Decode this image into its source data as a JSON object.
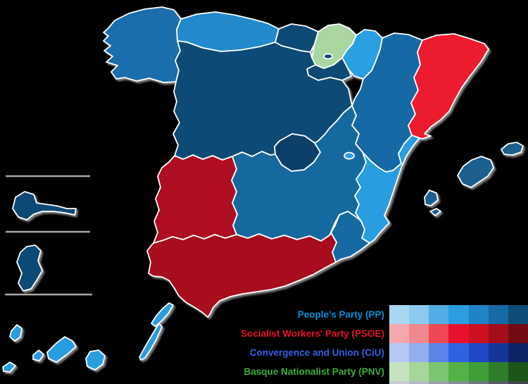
{
  "legend": {
    "entries": [
      {
        "party": "People's Party (PP)",
        "label_color": "#0092da",
        "shades": [
          "#a9d7f2",
          "#8cc9ee",
          "#54ace4",
          "#2b9de0",
          "#1f83c6",
          "#176aa6",
          "#0e4d78"
        ]
      },
      {
        "party": "Socialist Workers' Party (PSOE)",
        "label_color": "#e8112d",
        "shades": [
          "#f5a7ae",
          "#f1878f",
          "#ee4854",
          "#e8112d",
          "#cd1022",
          "#a30d1c",
          "#740a13"
        ]
      },
      {
        "party": "Convergence and Union (CiU)",
        "label_color": "#3263e2",
        "shades": [
          "#b5c8f3",
          "#93aeee",
          "#5d83e8",
          "#2f62e2",
          "#1f48c6",
          "#16359b",
          "#0e2266"
        ]
      },
      {
        "party": "Basque Nationalist Party (PNV)",
        "label_color": "#3fae3c",
        "shades": [
          "#c5e3bf",
          "#a5d69c",
          "#7cc671",
          "#52b246",
          "#3f9e38",
          "#2f7d2b",
          "#1d5418"
        ]
      }
    ],
    "partial_row_shades": [
      "#c6cbd0",
      "#b4bac0",
      "#9aa2a9",
      "#868e96",
      "#707880",
      "#595f66",
      "#42474d"
    ]
  },
  "map": {
    "stroke_color": "#ffffff",
    "shadow_color": "#9a9a9a",
    "inset_line_color": "#a8a8a8",
    "regions": [
      {
        "id": "galicia",
        "name": "Galicia",
        "winner": "PP",
        "fill": "#1a6dab"
      },
      {
        "id": "asturias",
        "name": "Asturias",
        "winner": "PP",
        "fill": "#2289cb"
      },
      {
        "id": "cantabria",
        "name": "Cantabria",
        "winner": "PP",
        "fill": "#0d4a74"
      },
      {
        "id": "basque-country",
        "name": "Basque Country",
        "winner": "PNV",
        "fill": "#a9d6a1"
      },
      {
        "id": "trevino-enclave",
        "name": "Trevino enclave (Castile and Leon)",
        "winner": "PP",
        "fill": "#0d4a74"
      },
      {
        "id": "navarre",
        "name": "Navarre",
        "winner": "PP",
        "fill": "#2b9fe1"
      },
      {
        "id": "la-rioja",
        "name": "La Rioja",
        "winner": "PP",
        "fill": "#0d4a74"
      },
      {
        "id": "aragon",
        "name": "Aragon",
        "winner": "PP",
        "fill": "#1769a5"
      },
      {
        "id": "catalonia",
        "name": "Catalonia",
        "winner": "PSOE",
        "fill": "#ec1b2e"
      },
      {
        "id": "castile-and-leon",
        "name": "Castile and Leon",
        "winner": "PP",
        "fill": "#0e4c76"
      },
      {
        "id": "madrid",
        "name": "Community of Madrid",
        "winner": "PP",
        "fill": "#0c4168"
      },
      {
        "id": "castilla-la-mancha",
        "name": "Castilla-La Mancha",
        "winner": "PP",
        "fill": "#15699f"
      },
      {
        "id": "valencia",
        "name": "Valencian Community",
        "winner": "PP",
        "fill": "#2b9de0"
      },
      {
        "id": "ademuz-enclave",
        "name": "Rincon de Ademuz (Valencia)",
        "winner": "PP",
        "fill": "#2b9de0"
      },
      {
        "id": "murcia",
        "name": "Region of Murcia",
        "winner": "PP",
        "fill": "#1769a3"
      },
      {
        "id": "extremadura",
        "name": "Extremadura",
        "winner": "PSOE",
        "fill": "#af0e20"
      },
      {
        "id": "andalusia",
        "name": "Andalusia",
        "winner": "PSOE",
        "fill": "#a70d1e"
      },
      {
        "id": "balearic-islands",
        "name": "Balearic Islands",
        "winner": "PP",
        "fill": "#1b5f8e"
      },
      {
        "id": "canary-islands",
        "name": "Canary Islands",
        "winner": "PP",
        "fill": "#2b9de0"
      },
      {
        "id": "ceuta",
        "name": "Ceuta",
        "winner": "PP",
        "fill": "#0d4a74"
      },
      {
        "id": "melilla",
        "name": "Melilla",
        "winner": "PP",
        "fill": "#0d4a74"
      }
    ]
  }
}
